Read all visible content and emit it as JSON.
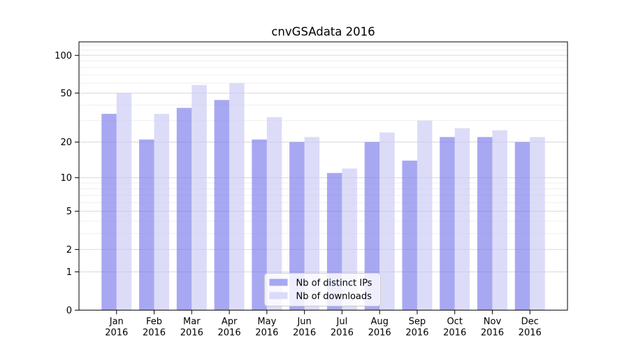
{
  "chart_data": {
    "type": "bar",
    "title": "cnvGSAdata 2016",
    "categories": [
      "Jan",
      "Feb",
      "Mar",
      "Apr",
      "May",
      "Jun",
      "Jul",
      "Aug",
      "Sep",
      "Oct",
      "Nov",
      "Dec"
    ],
    "category_year": "2016",
    "series": [
      {
        "name": "Nb of distinct IPs",
        "color": "rgba(122,122,235,0.65)",
        "values": [
          34,
          21,
          38,
          44,
          21,
          20,
          11,
          20,
          14,
          22,
          22,
          20
        ]
      },
      {
        "name": "Nb of downloads",
        "color": "rgba(202,202,246,0.65)",
        "values": [
          50,
          34,
          58,
          60,
          32,
          22,
          12,
          24,
          30,
          26,
          25,
          22
        ]
      }
    ],
    "y_axis": {
      "scale": "log1p",
      "ticks": [
        0,
        1,
        2,
        5,
        10,
        20,
        50,
        100
      ],
      "minor_gridlines": [
        3,
        4,
        6,
        7,
        8,
        9,
        30,
        40,
        60,
        70,
        80,
        90,
        110,
        120
      ],
      "ymax": 128
    },
    "xlabel": "",
    "ylabel": "",
    "grid": true,
    "legend": {
      "position": "lower-center"
    }
  },
  "colors": {
    "major_grid": "#d9d9d9",
    "minor_grid": "#efefef",
    "axis": "#000000",
    "tick_text": "#000000",
    "legend_border": "#cccccc",
    "legend_bg": "#ffffff"
  }
}
